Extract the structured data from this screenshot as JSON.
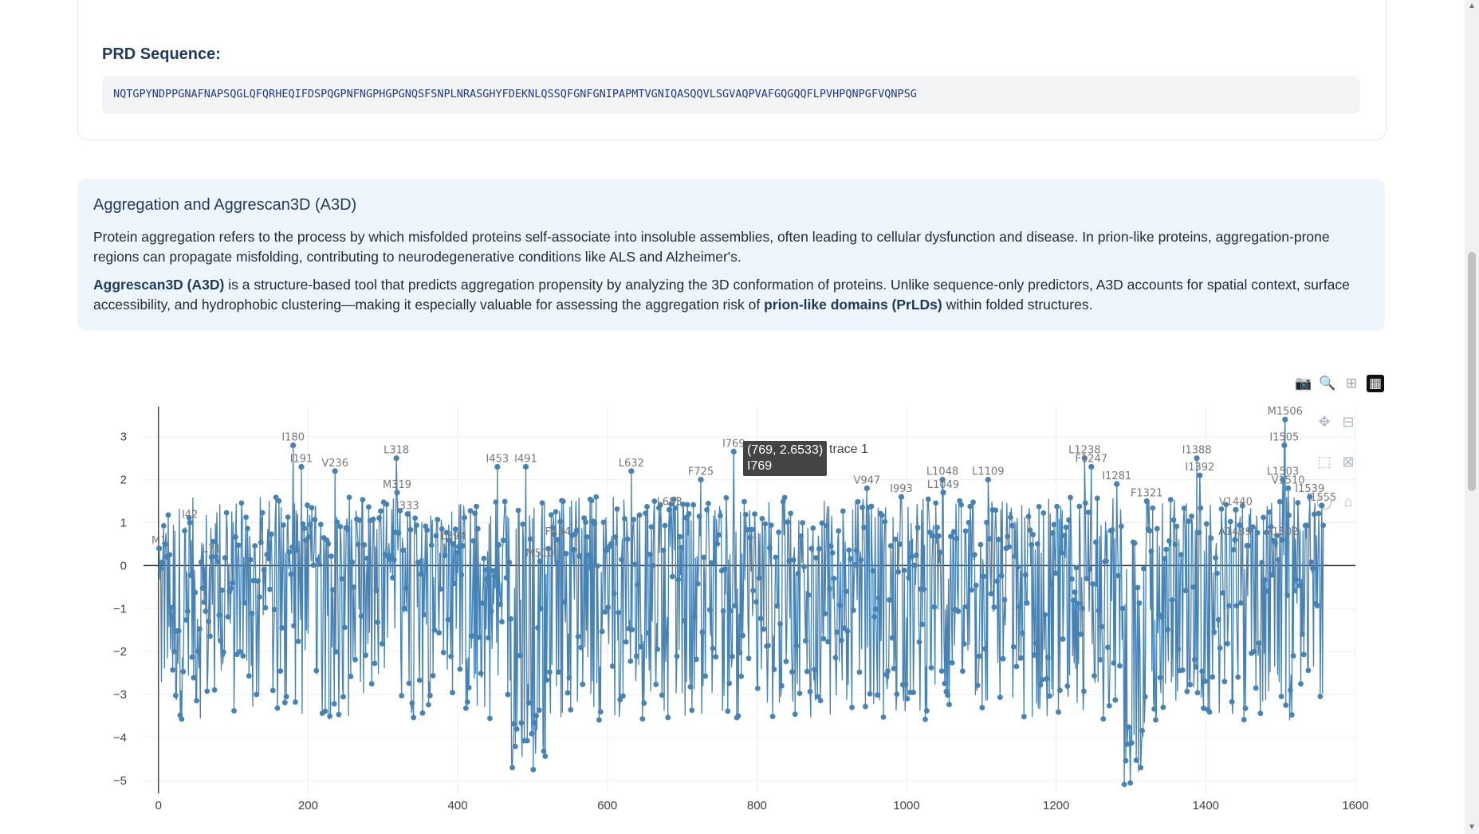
{
  "prd": {
    "title": "PRD Sequence:",
    "sequence": "NQTGPYNDPPGNAFNAPSQGLQFQRHEQIFDSPQGPNFNGPHGPGNQSFSNPLNRASGHYFDEKNLQSSQFGNFGNIPAPMTVGNIQASQQVLSGVAQPVAFGQGQQFLPVHPQNPGFVQNPSG"
  },
  "info": {
    "title": "Aggregation and Aggrescan3D (A3D)",
    "p1": "Protein aggregation refers to the process by which misfolded proteins self-associate into insoluble assemblies, often leading to cellular dysfunction and disease. In prion-like proteins, aggregation-prone regions can propagate misfolding, contributing to neurodegenerative conditions like ALS and Alzheimer's.",
    "p2_bold": "Aggrescan3D (A3D)",
    "p2_mid": " is a structure-based tool that predicts aggregation propensity by analyzing the 3D conformation of proteins. Unlike sequence-only predictors, A3D accounts for spatial context, surface accessibility, and hydrophobic clustering—making it especially valuable for assessing the aggregation risk of ",
    "p2_bold2": "prion-like domains (PrLDs)",
    "p2_end": " within folded structures."
  },
  "modebar": {
    "icons": [
      "camera-icon",
      "zoom-icon",
      "zoom-in-icon",
      "plotly-logo-icon"
    ]
  },
  "tooltip": {
    "value": "(769, 2.6533)",
    "residue": "I769",
    "trace": "trace 1"
  },
  "chart_data": {
    "type": "line",
    "xlim": [
      -20,
      1600
    ],
    "ylim": [
      -5.3,
      3.7
    ],
    "xticks": [
      0,
      200,
      400,
      600,
      800,
      1000,
      1200,
      1400,
      1600
    ],
    "yticks": [
      3,
      2,
      1,
      0,
      -1,
      -2,
      -3,
      -4,
      -5
    ],
    "series_color": "#4682b4",
    "annotations": [
      {
        "x": 1,
        "y": 0.4,
        "label": "M1"
      },
      {
        "x": 42,
        "y": 1.0,
        "label": "I42"
      },
      {
        "x": 71,
        "y": 0.2,
        "label": "L71"
      },
      {
        "x": 180,
        "y": 2.8,
        "label": "I180"
      },
      {
        "x": 191,
        "y": 2.3,
        "label": "I191"
      },
      {
        "x": 236,
        "y": 2.2,
        "label": "V236"
      },
      {
        "x": 318,
        "y": 2.5,
        "label": "L318"
      },
      {
        "x": 319,
        "y": 1.7,
        "label": "M319"
      },
      {
        "x": 333,
        "y": 1.2,
        "label": "I333"
      },
      {
        "x": 394,
        "y": 0.5,
        "label": "L394"
      },
      {
        "x": 453,
        "y": 2.3,
        "label": "I453"
      },
      {
        "x": 491,
        "y": 2.3,
        "label": "I491"
      },
      {
        "x": 510,
        "y": 0.1,
        "label": "M510"
      },
      {
        "x": 534,
        "y": 0.6,
        "label": "F534"
      },
      {
        "x": 632,
        "y": 2.2,
        "label": "L632"
      },
      {
        "x": 683,
        "y": 1.3,
        "label": "L683"
      },
      {
        "x": 725,
        "y": 2.0,
        "label": "F725"
      },
      {
        "x": 769,
        "y": 2.6533,
        "label": "I769"
      },
      {
        "x": 947,
        "y": 1.8,
        "label": "V947"
      },
      {
        "x": 993,
        "y": 1.6,
        "label": "I993"
      },
      {
        "x": 1048,
        "y": 2.0,
        "label": "L1048"
      },
      {
        "x": 1049,
        "y": 1.7,
        "label": "L1049"
      },
      {
        "x": 1109,
        "y": 2.0,
        "label": "L1109"
      },
      {
        "x": 1238,
        "y": 2.5,
        "label": "L1238"
      },
      {
        "x": 1247,
        "y": 2.3,
        "label": "F1247"
      },
      {
        "x": 1281,
        "y": 1.9,
        "label": "I1281"
      },
      {
        "x": 1321,
        "y": 1.5,
        "label": "F1321"
      },
      {
        "x": 1388,
        "y": 2.5,
        "label": "I1388"
      },
      {
        "x": 1392,
        "y": 2.1,
        "label": "I1392"
      },
      {
        "x": 1440,
        "y": 1.3,
        "label": "V1440"
      },
      {
        "x": 1439,
        "y": 0.6,
        "label": "A1439"
      },
      {
        "x": 1502,
        "y": 0.6,
        "label": "P1502"
      },
      {
        "x": 1506,
        "y": 3.4,
        "label": "M1506"
      },
      {
        "x": 1505,
        "y": 2.8,
        "label": "I1505"
      },
      {
        "x": 1503,
        "y": 2.0,
        "label": "L1503"
      },
      {
        "x": 1510,
        "y": 1.8,
        "label": "V1510"
      },
      {
        "x": 1539,
        "y": 1.6,
        "label": "I1539"
      },
      {
        "x": 1555,
        "y": 1.4,
        "label": "I1555"
      }
    ]
  }
}
